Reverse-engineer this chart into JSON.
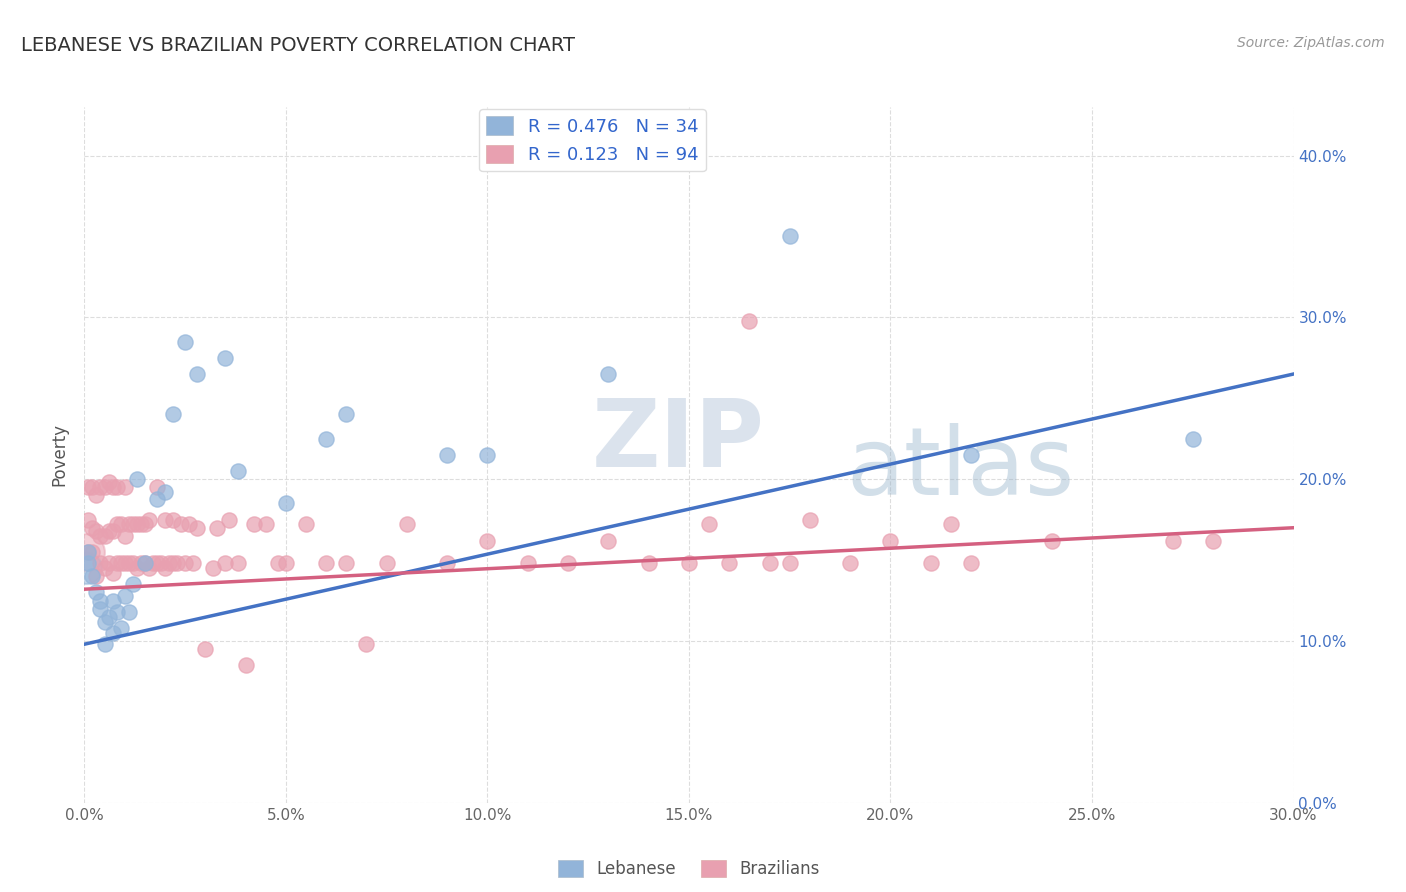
{
  "title": "LEBANESE VS BRAZILIAN POVERTY CORRELATION CHART",
  "source": "Source: ZipAtlas.com",
  "xlim": [
    0.0,
    0.3
  ],
  "ylim": [
    0.0,
    0.43
  ],
  "legend_labels": [
    "Lebanese",
    "Brazilians"
  ],
  "r_lebanese": 0.476,
  "n_lebanese": 34,
  "r_brazilians": 0.123,
  "n_brazilians": 94,
  "lebanese_color": "#92b4d9",
  "brazilians_color": "#e8a0b0",
  "trendline_lebanese_color": "#4472c4",
  "trendline_brazilians_color": "#d46080",
  "watermark_zip": "ZIP",
  "watermark_atlas": "atlas",
  "lebanese_x": [
    0.001,
    0.001,
    0.002,
    0.003,
    0.004,
    0.004,
    0.005,
    0.005,
    0.006,
    0.007,
    0.007,
    0.008,
    0.009,
    0.01,
    0.011,
    0.012,
    0.013,
    0.015,
    0.018,
    0.02,
    0.022,
    0.025,
    0.028,
    0.035,
    0.038,
    0.05,
    0.06,
    0.065,
    0.09,
    0.1,
    0.13,
    0.175,
    0.22,
    0.275
  ],
  "lebanese_y": [
    0.155,
    0.148,
    0.14,
    0.13,
    0.125,
    0.12,
    0.112,
    0.098,
    0.115,
    0.125,
    0.105,
    0.118,
    0.108,
    0.128,
    0.118,
    0.135,
    0.2,
    0.148,
    0.188,
    0.192,
    0.24,
    0.285,
    0.265,
    0.275,
    0.205,
    0.185,
    0.225,
    0.24,
    0.215,
    0.215,
    0.265,
    0.35,
    0.215,
    0.225
  ],
  "brazilians_x": [
    0.001,
    0.001,
    0.001,
    0.002,
    0.002,
    0.002,
    0.003,
    0.003,
    0.003,
    0.004,
    0.004,
    0.004,
    0.005,
    0.005,
    0.005,
    0.006,
    0.006,
    0.006,
    0.007,
    0.007,
    0.007,
    0.008,
    0.008,
    0.008,
    0.009,
    0.009,
    0.01,
    0.01,
    0.01,
    0.011,
    0.011,
    0.012,
    0.012,
    0.013,
    0.013,
    0.014,
    0.014,
    0.015,
    0.015,
    0.016,
    0.016,
    0.017,
    0.018,
    0.018,
    0.019,
    0.02,
    0.02,
    0.021,
    0.022,
    0.022,
    0.023,
    0.024,
    0.025,
    0.026,
    0.027,
    0.028,
    0.03,
    0.032,
    0.033,
    0.035,
    0.036,
    0.038,
    0.04,
    0.042,
    0.045,
    0.048,
    0.05,
    0.055,
    0.06,
    0.065,
    0.07,
    0.075,
    0.08,
    0.09,
    0.1,
    0.11,
    0.12,
    0.13,
    0.14,
    0.15,
    0.155,
    0.16,
    0.165,
    0.17,
    0.175,
    0.18,
    0.19,
    0.2,
    0.21,
    0.215,
    0.22,
    0.24,
    0.27,
    0.28
  ],
  "brazilians_y": [
    0.155,
    0.175,
    0.195,
    0.155,
    0.17,
    0.195,
    0.14,
    0.168,
    0.19,
    0.148,
    0.165,
    0.195,
    0.145,
    0.165,
    0.195,
    0.148,
    0.168,
    0.198,
    0.142,
    0.168,
    0.195,
    0.148,
    0.172,
    0.195,
    0.148,
    0.172,
    0.148,
    0.165,
    0.195,
    0.148,
    0.172,
    0.148,
    0.172,
    0.145,
    0.172,
    0.148,
    0.172,
    0.148,
    0.172,
    0.145,
    0.175,
    0.148,
    0.148,
    0.195,
    0.148,
    0.145,
    0.175,
    0.148,
    0.148,
    0.175,
    0.148,
    0.172,
    0.148,
    0.172,
    0.148,
    0.17,
    0.095,
    0.145,
    0.17,
    0.148,
    0.175,
    0.148,
    0.085,
    0.172,
    0.172,
    0.148,
    0.148,
    0.172,
    0.148,
    0.148,
    0.098,
    0.148,
    0.172,
    0.148,
    0.162,
    0.148,
    0.148,
    0.162,
    0.148,
    0.148,
    0.172,
    0.148,
    0.298,
    0.148,
    0.148,
    0.175,
    0.148,
    0.162,
    0.148,
    0.172,
    0.148,
    0.162,
    0.162,
    0.162
  ]
}
